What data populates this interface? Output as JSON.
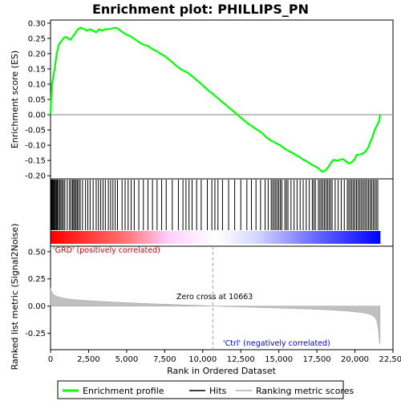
{
  "chart_data": {
    "type": "line",
    "title": "Enrichment plot: PHILLIPS_PN",
    "x_axis": {
      "label": "Rank in Ordered Dataset",
      "range": [
        0,
        22500
      ],
      "ticks": [
        0,
        2500,
        5000,
        7500,
        10000,
        12500,
        15000,
        17500,
        20000,
        22500
      ],
      "tick_labels": [
        "0",
        "2,500",
        "5,000",
        "7,500",
        "10,000",
        "12,500",
        "15,000",
        "17,500",
        "20,000",
        "22,500"
      ]
    },
    "es_panel": {
      "ylabel": "Enrichment score (ES)",
      "ylim": [
        -0.21,
        0.31
      ],
      "ticks": [
        0.3,
        0.25,
        0.2,
        0.15,
        0.1,
        0.05,
        0.0,
        -0.05,
        -0.1,
        -0.15,
        -0.2
      ],
      "tick_labels": [
        "0.30",
        "0.25",
        "0.20",
        "0.15",
        "0.10",
        "0.05",
        "0.00",
        "-0.05",
        "-0.10",
        "-0.15",
        "-0.20"
      ],
      "grid": false,
      "series": [
        {
          "name": "Enrichment profile",
          "color": "#00ff00",
          "points": [
            [
              0,
              0.0
            ],
            [
              40,
              0.05
            ],
            [
              100,
              0.1
            ],
            [
              200,
              0.13
            ],
            [
              300,
              0.16
            ],
            [
              400,
              0.2
            ],
            [
              550,
              0.23
            ],
            [
              700,
              0.24
            ],
            [
              850,
              0.25
            ],
            [
              1000,
              0.255
            ],
            [
              1150,
              0.25
            ],
            [
              1300,
              0.245
            ],
            [
              1450,
              0.255
            ],
            [
              1600,
              0.265
            ],
            [
              1800,
              0.28
            ],
            [
              2000,
              0.285
            ],
            [
              2200,
              0.28
            ],
            [
              2400,
              0.275
            ],
            [
              2600,
              0.28
            ],
            [
              2800,
              0.275
            ],
            [
              3000,
              0.27
            ],
            [
              3200,
              0.28
            ],
            [
              3400,
              0.275
            ],
            [
              3600,
              0.28
            ],
            [
              3800,
              0.28
            ],
            [
              4000,
              0.282
            ],
            [
              4200,
              0.285
            ],
            [
              4400,
              0.283
            ],
            [
              4600,
              0.275
            ],
            [
              4800,
              0.268
            ],
            [
              5000,
              0.262
            ],
            [
              5200,
              0.258
            ],
            [
              5400,
              0.252
            ],
            [
              5600,
              0.245
            ],
            [
              5800,
              0.238
            ],
            [
              6000,
              0.232
            ],
            [
              6200,
              0.228
            ],
            [
              6400,
              0.225
            ],
            [
              6600,
              0.218
            ],
            [
              6800,
              0.212
            ],
            [
              7000,
              0.208
            ],
            [
              7200,
              0.2
            ],
            [
              7400,
              0.195
            ],
            [
              7600,
              0.188
            ],
            [
              7800,
              0.18
            ],
            [
              8000,
              0.172
            ],
            [
              8200,
              0.163
            ],
            [
              8400,
              0.155
            ],
            [
              8600,
              0.148
            ],
            [
              8800,
              0.143
            ],
            [
              9000,
              0.138
            ],
            [
              9200,
              0.13
            ],
            [
              9400,
              0.122
            ],
            [
              9600,
              0.113
            ],
            [
              9800,
              0.105
            ],
            [
              10000,
              0.096
            ],
            [
              10200,
              0.087
            ],
            [
              10400,
              0.078
            ],
            [
              10663,
              0.068
            ],
            [
              10900,
              0.058
            ],
            [
              11200,
              0.045
            ],
            [
              11500,
              0.033
            ],
            [
              11800,
              0.02
            ],
            [
              12100,
              0.008
            ],
            [
              12400,
              -0.005
            ],
            [
              12700,
              -0.018
            ],
            [
              13000,
              -0.03
            ],
            [
              13300,
              -0.04
            ],
            [
              13600,
              -0.05
            ],
            [
              13900,
              -0.06
            ],
            [
              14200,
              -0.075
            ],
            [
              14500,
              -0.085
            ],
            [
              14800,
              -0.093
            ],
            [
              15100,
              -0.1
            ],
            [
              15400,
              -0.112
            ],
            [
              15700,
              -0.12
            ],
            [
              16000,
              -0.128
            ],
            [
              16300,
              -0.137
            ],
            [
              16600,
              -0.147
            ],
            [
              16900,
              -0.155
            ],
            [
              17200,
              -0.165
            ],
            [
              17500,
              -0.172
            ],
            [
              17700,
              -0.18
            ],
            [
              17850,
              -0.187
            ],
            [
              18000,
              -0.185
            ],
            [
              18150,
              -0.178
            ],
            [
              18300,
              -0.168
            ],
            [
              18450,
              -0.155
            ],
            [
              18600,
              -0.148
            ],
            [
              18800,
              -0.15
            ],
            [
              19000,
              -0.148
            ],
            [
              19200,
              -0.145
            ],
            [
              19400,
              -0.152
            ],
            [
              19600,
              -0.16
            ],
            [
              19800,
              -0.155
            ],
            [
              20000,
              -0.145
            ],
            [
              20100,
              -0.132
            ],
            [
              20300,
              -0.13
            ],
            [
              20500,
              -0.128
            ],
            [
              20700,
              -0.12
            ],
            [
              20900,
              -0.105
            ],
            [
              21000,
              -0.09
            ],
            [
              21100,
              -0.08
            ],
            [
              21200,
              -0.065
            ],
            [
              21300,
              -0.05
            ],
            [
              21400,
              -0.04
            ],
            [
              21500,
              -0.03
            ],
            [
              21600,
              -0.02
            ],
            [
              21650,
              0.0
            ]
          ]
        }
      ]
    },
    "hits_panel": {
      "hit_ranks": [
        20,
        60,
        100,
        140,
        180,
        230,
        280,
        330,
        390,
        450,
        520,
        600,
        680,
        760,
        850,
        940,
        1100,
        1250,
        1350,
        1450,
        1520,
        1600,
        1680,
        1760,
        1850,
        1950,
        2100,
        2300,
        2450,
        2600,
        2800,
        3000,
        3150,
        3300,
        3450,
        3600,
        3800,
        3950,
        4100,
        4250,
        4400,
        4700,
        4900,
        5100,
        5300,
        5500,
        5800,
        6100,
        6400,
        6700,
        7000,
        7300,
        7600,
        8000,
        8400,
        8700,
        8900,
        9100,
        9300,
        9600,
        9900,
        10300,
        10600,
        10800,
        11000,
        11300,
        11700,
        12100,
        12500,
        12900,
        13200,
        13500,
        13800,
        14100,
        14300,
        14500,
        14600,
        14700,
        14800,
        14900,
        15000,
        15100,
        15200,
        15400,
        15500,
        15600,
        15800,
        16000,
        16200,
        16400,
        16600,
        16800,
        17000,
        17200,
        17300,
        17400,
        17600,
        17700,
        17800,
        17900,
        18000,
        18100,
        18200,
        18300,
        18400,
        18500,
        18700,
        18900,
        19100,
        19300,
        19500,
        19600,
        19700,
        19800,
        19900,
        20000,
        20100,
        20200,
        20300,
        20400,
        20500,
        20600,
        20700,
        20800,
        20900,
        21000,
        21100,
        21200,
        21300,
        21400,
        21500
      ],
      "heatmap_colors": [
        "#ff0000",
        "#ffffff",
        "#0000ff"
      ]
    },
    "metric_panel": {
      "ylabel": "Ranked list metric (Signal2Noise)",
      "ylim": [
        -0.4,
        0.55
      ],
      "ticks": [
        0.5,
        0.25,
        0.0,
        -0.25
      ],
      "tick_labels": [
        "0.50",
        "0.25",
        "0.00",
        "-0.25"
      ],
      "points": [
        [
          0,
          0.17
        ],
        [
          50,
          0.14
        ],
        [
          150,
          0.11
        ],
        [
          400,
          0.09
        ],
        [
          800,
          0.075
        ],
        [
          1500,
          0.06
        ],
        [
          2500,
          0.05
        ],
        [
          4000,
          0.038
        ],
        [
          6000,
          0.025
        ],
        [
          8000,
          0.015
        ],
        [
          10000,
          0.005
        ],
        [
          10663,
          0.0
        ],
        [
          12000,
          -0.006
        ],
        [
          14000,
          -0.014
        ],
        [
          16000,
          -0.022
        ],
        [
          18000,
          -0.032
        ],
        [
          19500,
          -0.045
        ],
        [
          20500,
          -0.06
        ],
        [
          21000,
          -0.075
        ],
        [
          21300,
          -0.1
        ],
        [
          21450,
          -0.14
        ],
        [
          21550,
          -0.22
        ],
        [
          21600,
          -0.32
        ],
        [
          21650,
          -0.35
        ]
      ],
      "fill_color": "#c0c0c0",
      "zero_cross_rank": 10663,
      "zero_cross_label": "Zero cross at 10663",
      "pos_label": "'GRD' (positively correlated)",
      "neg_label": "'Ctrl' (negatively correlated)",
      "pos_color": "#cc0000",
      "neg_color": "#0000cc"
    },
    "legend": {
      "placement": "bottom",
      "items": [
        {
          "label": "Enrichment profile",
          "color": "#00ff00",
          "kind": "line"
        },
        {
          "label": "Hits",
          "color": "#000000",
          "kind": "line"
        },
        {
          "label": "Ranking metric scores",
          "color": "#c0c0c0",
          "kind": "line"
        }
      ]
    }
  }
}
